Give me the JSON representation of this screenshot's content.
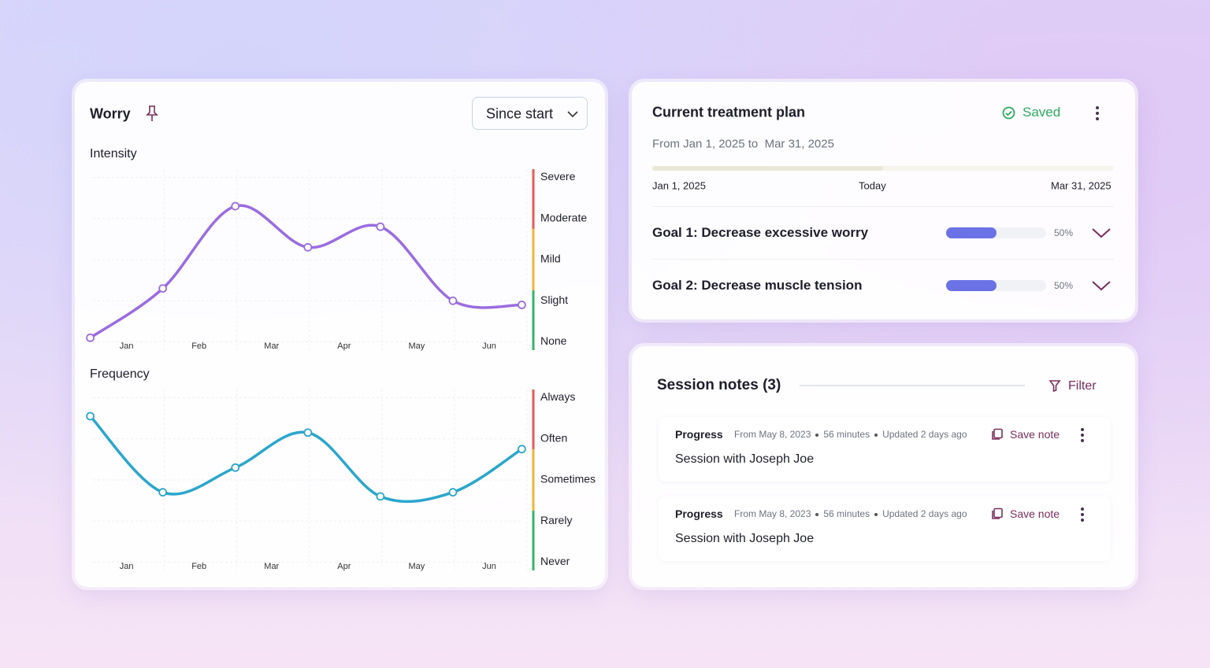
{
  "worry_panel": {
    "title": "Worry",
    "range_select": "Since start"
  },
  "chart_data": [
    {
      "type": "line",
      "title": "Intensity",
      "x": [
        0.5,
        1.5,
        2.5,
        3.5,
        4.5,
        5.5,
        6.45
      ],
      "values": [
        0.1,
        1.3,
        3.3,
        2.3,
        2.8,
        1.0,
        0.9
      ],
      "color": "#9a6ce0",
      "xlim": [
        0.45,
        6.5
      ],
      "xticks": [
        {
          "value": 1,
          "label": "Jan"
        },
        {
          "value": 2,
          "label": "Feb"
        },
        {
          "value": 3,
          "label": "Mar"
        },
        {
          "value": 4,
          "label": "Apr"
        },
        {
          "value": 5,
          "label": "May"
        },
        {
          "value": 6,
          "label": "Jun"
        }
      ],
      "ylim": [
        -0.2,
        4.2
      ],
      "yticks": [
        {
          "value": 0,
          "label": "None"
        },
        {
          "value": 1,
          "label": "Slight"
        },
        {
          "value": 2,
          "label": "Mild"
        },
        {
          "value": 3,
          "label": "Moderate"
        },
        {
          "value": 4,
          "label": "Severe"
        }
      ],
      "grid": true
    },
    {
      "type": "line",
      "title": "Frequency",
      "x": [
        0.5,
        1.5,
        2.5,
        3.5,
        4.5,
        5.5,
        6.45
      ],
      "values": [
        3.55,
        1.7,
        2.3,
        3.15,
        1.6,
        1.7,
        2.75
      ],
      "color": "#2aa6cc",
      "xlim": [
        0.45,
        6.5
      ],
      "xticks": [
        {
          "value": 1,
          "label": "Jan"
        },
        {
          "value": 2,
          "label": "Feb"
        },
        {
          "value": 3,
          "label": "Mar"
        },
        {
          "value": 4,
          "label": "Apr"
        },
        {
          "value": 5,
          "label": "May"
        },
        {
          "value": 6,
          "label": "Jun"
        }
      ],
      "ylim": [
        -0.2,
        4.2
      ],
      "yticks": [
        {
          "value": 0,
          "label": "Never"
        },
        {
          "value": 1,
          "label": "Rarely"
        },
        {
          "value": 2,
          "label": "Sometimes"
        },
        {
          "value": 3,
          "label": "Often"
        },
        {
          "value": 4,
          "label": "Always"
        }
      ],
      "grid": true
    }
  ],
  "treatment_plan": {
    "title": "Current treatment plan",
    "status": "Saved",
    "date_range": "From Jan 1, 2025 to  Mar 31, 2025",
    "timeline": {
      "start": "Jan 1, 2025",
      "today": "Today",
      "end": "Mar 31, 2025",
      "elapsed_percent": 50
    },
    "goals": [
      {
        "label": "Goal 1: Decrease excessive worry",
        "progress": 50,
        "progress_label": "50%"
      },
      {
        "label": "Goal 2: Decrease muscle tension",
        "progress": 50,
        "progress_label": "50%"
      }
    ]
  },
  "session_notes": {
    "title": "Session notes (3)",
    "filter": "Filter",
    "notes": [
      {
        "type": "Progress",
        "date": "From May 8, 2023",
        "duration": "56 minutes",
        "updated": "Updated 2 days ago",
        "action": "Save note",
        "text": "Session with Joseph Joe"
      },
      {
        "type": "Progress",
        "date": "From May 8, 2023",
        "duration": "56 minutes",
        "updated": "Updated 2 days ago",
        "action": "Save note",
        "text": "Session with Joseph Joe"
      }
    ]
  }
}
